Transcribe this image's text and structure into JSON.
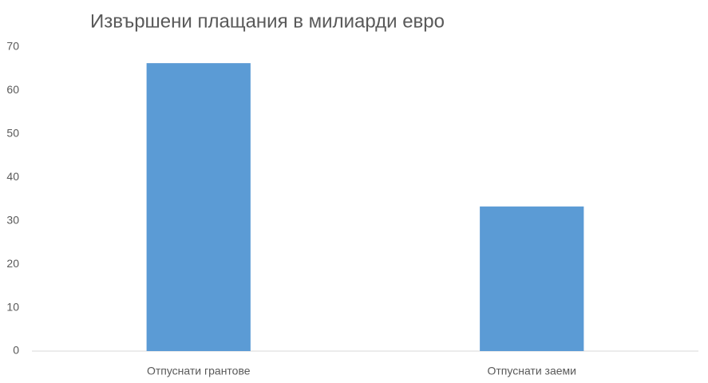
{
  "chart_data": {
    "type": "bar",
    "title": "Извършени плащания в милиарди евро",
    "categories": [
      "Отпуснати грантове",
      "Отпуснати заеми"
    ],
    "values": [
      66.3,
      33.3
    ],
    "color": "#5b9bd5",
    "ylim": [
      0,
      70
    ],
    "yticks": [
      0,
      10,
      20,
      30,
      40,
      50,
      60,
      70
    ],
    "grid": false
  }
}
